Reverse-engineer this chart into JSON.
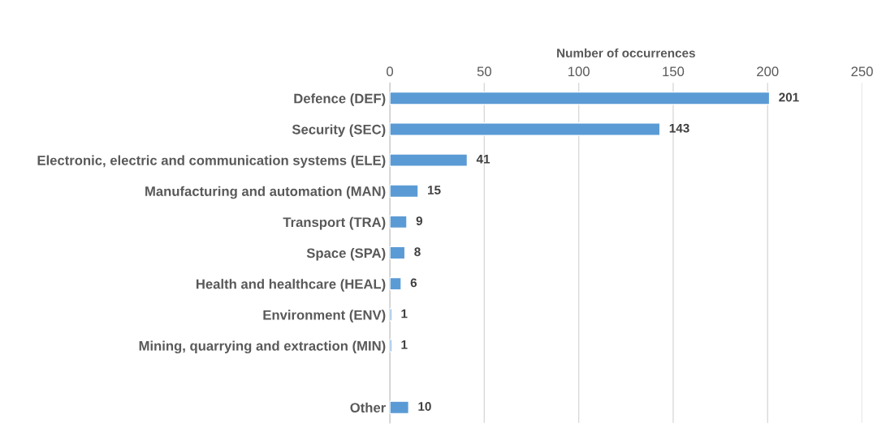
{
  "chart_data": {
    "type": "bar",
    "orientation": "horizontal",
    "xlabel": "Number of occurrences",
    "categories": [
      "Defence (DEF)",
      "Security (SEC)",
      "Electronic, electric and communication systems (ELE)",
      "Manufacturing and automation (MAN)",
      "Transport (TRA)",
      "Space (SPA)",
      "Health and healthcare (HEAL)",
      "Environment (ENV)",
      "Mining, quarrying and extraction (MIN)",
      null,
      "Other"
    ],
    "values": [
      201,
      143,
      41,
      15,
      9,
      8,
      6,
      1,
      1,
      null,
      10
    ],
    "color": "#5b9bd5",
    "xlim": [
      0,
      250
    ],
    "xticks": [
      0,
      50,
      100,
      150,
      200,
      250
    ],
    "grid": "x",
    "data_labels": true,
    "legend": false
  }
}
